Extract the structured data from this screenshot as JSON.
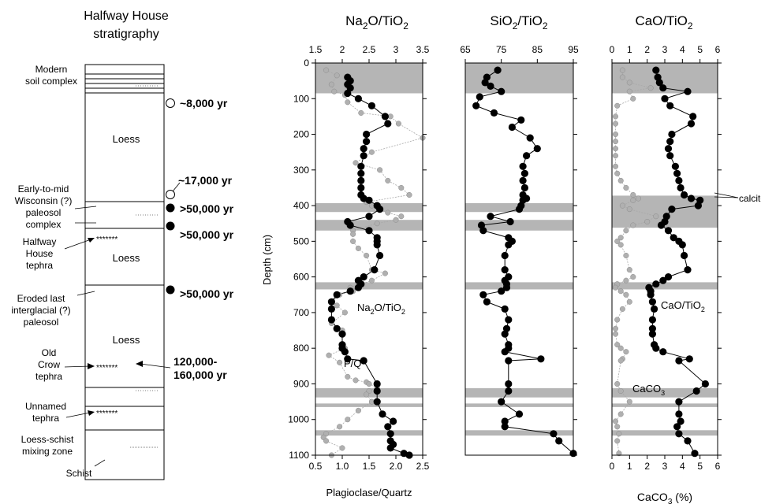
{
  "strat": {
    "title": [
      "Halfway House",
      "stratigraphy"
    ],
    "units": {
      "modern": [
        "Modern",
        "soil complex"
      ],
      "loess1": "Loess",
      "wisconsin": [
        "Early-to-mid",
        "Wisconsin (?)",
        "paleosol",
        "complex"
      ],
      "hh_tephra": [
        "Halfway",
        "House",
        "tephra"
      ],
      "loess2": "Loess",
      "eroded": [
        "Eroded last",
        "interglacial (?)",
        "paleosol"
      ],
      "loess3": "Loess",
      "oc_tephra": [
        "Old",
        "Crow",
        "tephra"
      ],
      "unnamed": [
        "Unnamed",
        "tephra"
      ],
      "mixing": [
        "Loess-schist",
        "mixing zone"
      ],
      "schist": "Schist"
    },
    "tephra_mark": "*******",
    "ages": {
      "a1": "~8,000 yr",
      "a2": "~17,000 yr",
      "a3": ">50,000 yr",
      "a4": ">50,000 yr",
      "a5": ">50,000 yr",
      "a6": [
        "120,000-",
        "160,000 yr"
      ]
    }
  },
  "chart_data": [
    {
      "type": "line",
      "title": "Na2O/TiO2",
      "ylabel": "Depth (cm)",
      "xlabel": "Plagioclase/Quartz",
      "ylim": [
        1100,
        0
      ],
      "xlim": [
        1.5,
        3.5
      ],
      "xticks_top": [
        "1.5",
        "2",
        "2.5",
        "3",
        "3.5"
      ],
      "xlim_bottom": [
        0.5,
        2.5
      ],
      "xticks_bottom": [
        "0.5",
        "1.0",
        "1.5",
        "2.0",
        "2.5"
      ],
      "yticks": [
        "0",
        "100",
        "200",
        "300",
        "400",
        "500",
        "600",
        "700",
        "800",
        "900",
        "1000",
        "1100"
      ],
      "gray_bands": [
        [
          0,
          85
        ],
        [
          393,
          418
        ],
        [
          440,
          470
        ],
        [
          615,
          635
        ],
        [
          912,
          938
        ],
        [
          955,
          965
        ],
        [
          1030,
          1045
        ]
      ],
      "annotations": [
        "Na2O/TiO2",
        "P/Q"
      ],
      "series": [
        {
          "name": "Na2O/TiO2",
          "x": [
            2.1,
            2.15,
            2.1,
            2.15,
            2.1,
            2.3,
            2.55,
            2.8,
            2.85,
            2.45,
            2.45,
            2.4,
            2.4,
            2.35,
            2.35,
            2.35,
            2.35,
            2.35,
            2.4,
            2.5,
            2.65,
            2.7,
            2.5,
            2.1,
            2.15,
            2.5,
            2.65,
            2.65,
            2.65,
            2.7,
            2.6,
            2.4,
            2.3,
            2.35,
            2.3,
            2.15,
            1.9,
            1.8,
            1.8,
            1.8,
            1.9,
            2.0,
            2.0,
            2.0,
            2.05,
            2.1,
            2.4,
            2.65,
            2.65,
            2.65,
            2.75,
            2.95,
            2.85,
            2.9,
            2.9,
            2.95,
            2.9,
            3.15,
            3.25
          ],
          "y": [
            40,
            50,
            60,
            70,
            85,
            100,
            120,
            150,
            170,
            200,
            220,
            240,
            260,
            290,
            310,
            330,
            350,
            370,
            380,
            385,
            400,
            410,
            430,
            445,
            455,
            470,
            490,
            500,
            510,
            540,
            580,
            600,
            610,
            620,
            630,
            640,
            650,
            670,
            690,
            720,
            745,
            760,
            790,
            800,
            810,
            830,
            835,
            900,
            920,
            950,
            985,
            1005,
            1020,
            1040,
            1060,
            1070,
            1080,
            1095,
            1100
          ]
        },
        {
          "name": "P/Q",
          "x": [
            0.7,
            0.9,
            0.8,
            0.85,
            1.05,
            1.1,
            1.35,
            1.9,
            2.05,
            2.5,
            1.55,
            1.25,
            1.7,
            1.85,
            2.1,
            2.25,
            1.45,
            1.55,
            1.85,
            2.1,
            2.0,
            1.65,
            1.2,
            1.2,
            1.2,
            1.3,
            1.45,
            1.55,
            1.8,
            1.55,
            1.15,
            1.2,
            0.95,
            0.8,
            0.9,
            1.05,
            0.8,
            1.0,
            1.0,
            1.0,
            1.05,
            0.75,
            0.95,
            1.1,
            1.25,
            1.45,
            1.5,
            1.65,
            1.5,
            1.45,
            1.55,
            1.3,
            1.1,
            0.95,
            0.7,
            0.65,
            0.7,
            1.0,
            0.8
          ],
          "y": [
            20,
            35,
            60,
            80,
            90,
            110,
            140,
            150,
            170,
            210,
            250,
            280,
            300,
            330,
            350,
            370,
            390,
            400,
            420,
            430,
            440,
            450,
            470,
            480,
            500,
            520,
            540,
            580,
            590,
            610,
            630,
            640,
            650,
            670,
            680,
            700,
            730,
            750,
            760,
            790,
            800,
            820,
            840,
            880,
            890,
            895,
            900,
            910,
            920,
            930,
            950,
            975,
            1000,
            1020,
            1040,
            1050,
            1060,
            1080,
            1100
          ]
        }
      ]
    },
    {
      "type": "line",
      "title": "SiO2/TiO2",
      "ylim": [
        1100,
        0
      ],
      "xlim": [
        65,
        95
      ],
      "xticks_top": [
        "65",
        "75",
        "85",
        "95"
      ],
      "gray_bands": [
        [
          0,
          85
        ],
        [
          393,
          418
        ],
        [
          440,
          470
        ],
        [
          615,
          635
        ],
        [
          912,
          938
        ],
        [
          955,
          965
        ],
        [
          1030,
          1045
        ]
      ],
      "series": [
        {
          "name": "SiO2/TiO2",
          "x": [
            74,
            71,
            70.5,
            72,
            75,
            69,
            68,
            73,
            80.5,
            78,
            83,
            85,
            82,
            81,
            81.5,
            81,
            81.5,
            81,
            82,
            81,
            80.5,
            80,
            72,
            77.5,
            69.5,
            70,
            77,
            78,
            77,
            76,
            76,
            77,
            76,
            76.5,
            76.5,
            75,
            70,
            71,
            76,
            77,
            76.5,
            76,
            77,
            77,
            76,
            86,
            77,
            77,
            77,
            75,
            80,
            76,
            76,
            89.5,
            91,
            95
          ],
          "y": [
            20,
            40,
            55,
            65,
            80,
            95,
            120,
            140,
            160,
            180,
            210,
            240,
            260,
            290,
            310,
            330,
            350,
            370,
            380,
            385,
            400,
            410,
            430,
            445,
            455,
            470,
            490,
            500,
            510,
            540,
            580,
            600,
            610,
            620,
            630,
            640,
            650,
            670,
            690,
            720,
            745,
            760,
            790,
            800,
            810,
            830,
            835,
            900,
            920,
            950,
            985,
            1005,
            1020,
            1040,
            1060,
            1095
          ]
        }
      ]
    },
    {
      "type": "line",
      "title": "CaO/TiO2",
      "xlabel": "CaCO3 (%)",
      "ylim": [
        1100,
        0
      ],
      "xlim": [
        0,
        6
      ],
      "xticks_top": [
        "0",
        "1",
        "2",
        "3",
        "4",
        "5",
        "6"
      ],
      "xlim_bottom": [
        0,
        6
      ],
      "xticks_bottom": [
        "0",
        "1",
        "2",
        "3",
        "4",
        "5",
        "6"
      ],
      "gray_bands": [
        [
          0,
          85
        ],
        [
          372,
          462
        ],
        [
          615,
          635
        ],
        [
          912,
          938
        ],
        [
          955,
          965
        ],
        [
          1030,
          1045
        ]
      ],
      "annotations": [
        "calcite",
        "CaO/TiO2",
        "CaCO3"
      ],
      "series": [
        {
          "name": "CaO/TiO2",
          "x": [
            2.5,
            2.6,
            2.7,
            2.9,
            4.3,
            3.0,
            3.3,
            4.6,
            4.5,
            3.4,
            3.3,
            3.2,
            3.3,
            3.6,
            3.7,
            3.8,
            3.9,
            4.1,
            4.5,
            5.0,
            4.9,
            3.4,
            3.1,
            3.0,
            2.8,
            3.2,
            3.5,
            3.8,
            4.0,
            4.1,
            4.3,
            3.2,
            2.9,
            2.5,
            2.1,
            2.2,
            2.2,
            2.3,
            2.4,
            2.3,
            2.3,
            2.3,
            2.4,
            2.5,
            2.9,
            4.4,
            3.8,
            5.3,
            4.8,
            3.8,
            3.8,
            3.9,
            3.7,
            3.8,
            4.3,
            4.7
          ],
          "y": [
            20,
            40,
            55,
            70,
            80,
            100,
            120,
            150,
            170,
            200,
            220,
            240,
            260,
            290,
            310,
            330,
            350,
            370,
            380,
            385,
            400,
            410,
            430,
            445,
            455,
            470,
            490,
            500,
            510,
            540,
            580,
            600,
            610,
            620,
            630,
            640,
            650,
            670,
            690,
            720,
            745,
            760,
            790,
            800,
            810,
            830,
            835,
            900,
            920,
            950,
            985,
            1005,
            1020,
            1040,
            1060,
            1095
          ]
        },
        {
          "name": "CaCO3",
          "x": [
            0.6,
            0.6,
            1.0,
            2.2,
            1.0,
            1.2,
            0.3,
            0.2,
            0.2,
            0.2,
            0.2,
            0.2,
            0.2,
            0.2,
            0.3,
            0.5,
            0.8,
            1.2,
            1.5,
            1.2,
            0.6,
            1.0,
            2.5,
            2.0,
            1.2,
            0.8,
            0.5,
            0.3,
            0.5,
            0.8,
            1.0,
            1.2,
            0.8,
            0.3,
            0.2,
            0.5,
            0.8,
            1.0,
            0.6,
            0.3,
            0.2,
            0.2,
            0.3,
            0.5,
            0.8,
            0.6,
            0.5,
            0.3,
            0.5,
            1.0,
            0.5,
            0.2,
            0.3,
            0.4,
            0.3,
            0.4
          ],
          "y": [
            20,
            40,
            55,
            70,
            80,
            100,
            120,
            150,
            170,
            200,
            220,
            240,
            260,
            290,
            310,
            330,
            350,
            370,
            380,
            385,
            400,
            410,
            430,
            445,
            455,
            470,
            490,
            500,
            510,
            540,
            580,
            600,
            610,
            620,
            630,
            640,
            650,
            670,
            690,
            720,
            745,
            760,
            790,
            800,
            810,
            830,
            835,
            900,
            920,
            950,
            985,
            1005,
            1020,
            1040,
            1060,
            1095
          ]
        }
      ]
    }
  ]
}
